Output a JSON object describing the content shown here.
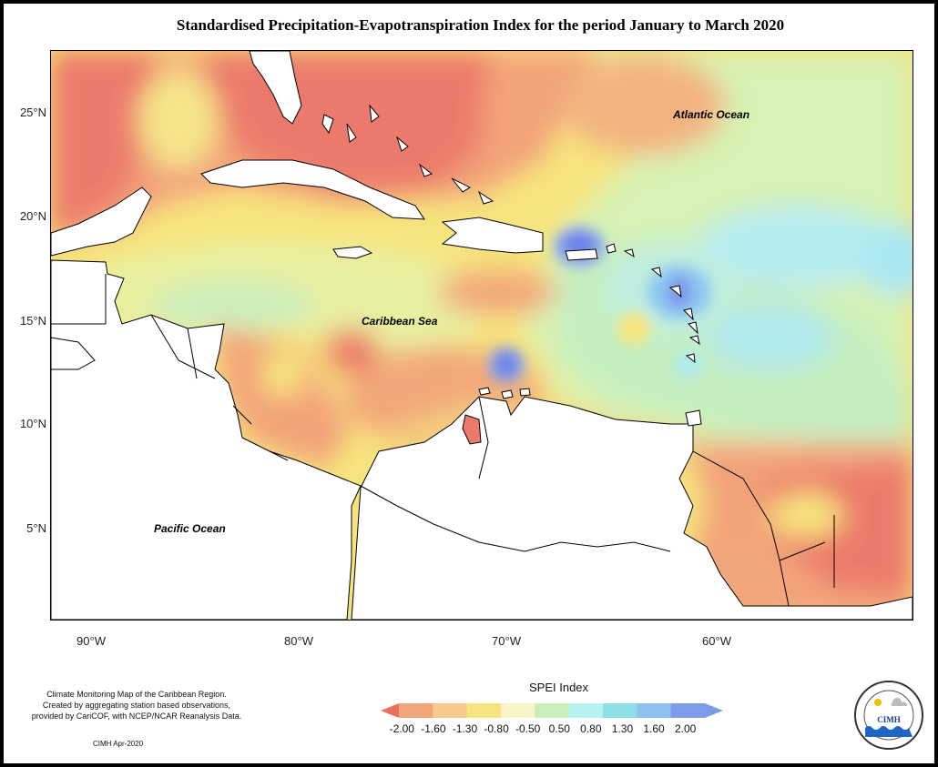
{
  "title": "Standardised Precipitation-Evapotranspiration Index for the period January to March 2020",
  "axes": {
    "lat_labels": [
      "25°N",
      "20°N",
      "15°N",
      "10°N",
      "5°N"
    ],
    "lon_labels": [
      "90°W",
      "80°W",
      "70°W",
      "60°W"
    ]
  },
  "labels": {
    "atlantic": "Atlantic Ocean",
    "caribbean": "Caribbean Sea",
    "pacific": "Pacific Ocean"
  },
  "credits": {
    "line1": "Climate Monitoring Map of the Caribbean Region.",
    "line2": "Created by aggregating station based observations,",
    "line3": "provided by CariCOF, with NCEP/NCAR Reanalysis Data.",
    "date": "CIMH Apr-2020"
  },
  "legend": {
    "title": "SPEI Index",
    "labels": [
      "-2.00",
      "-1.60",
      "-1.30",
      "-0.80",
      "-0.50",
      "0.50",
      "0.80",
      "1.30",
      "1.60",
      "2.00"
    ],
    "colors": [
      "#ef6f5e",
      "#f2a77a",
      "#f7c98a",
      "#f7e47e",
      "#f9f3c8",
      "#c8efba",
      "#b6f2f0",
      "#8fe0e6",
      "#8fc2ee",
      "#7d9bea",
      "#7aa0c8"
    ]
  },
  "logo": {
    "text": "CIMH"
  }
}
